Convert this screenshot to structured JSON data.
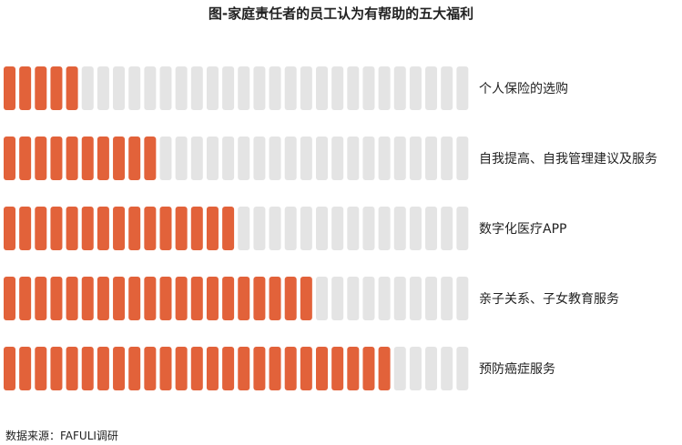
{
  "chart_data": {
    "type": "bar",
    "title": "图-家庭责任者的员工认为有帮助的五大福利",
    "categories": [
      "个人保险的选购",
      "自我提高、自我管理建议及服务",
      "数字化医疗APP",
      "亲子关系、子女教育服务",
      "预防癌症服务"
    ],
    "values": [
      5,
      10,
      15,
      20,
      25
    ],
    "total_units": 30,
    "colors": {
      "filled": "#E2623A",
      "empty": "#E4E4E4"
    }
  },
  "source": "数据来源：FAFULI调研"
}
